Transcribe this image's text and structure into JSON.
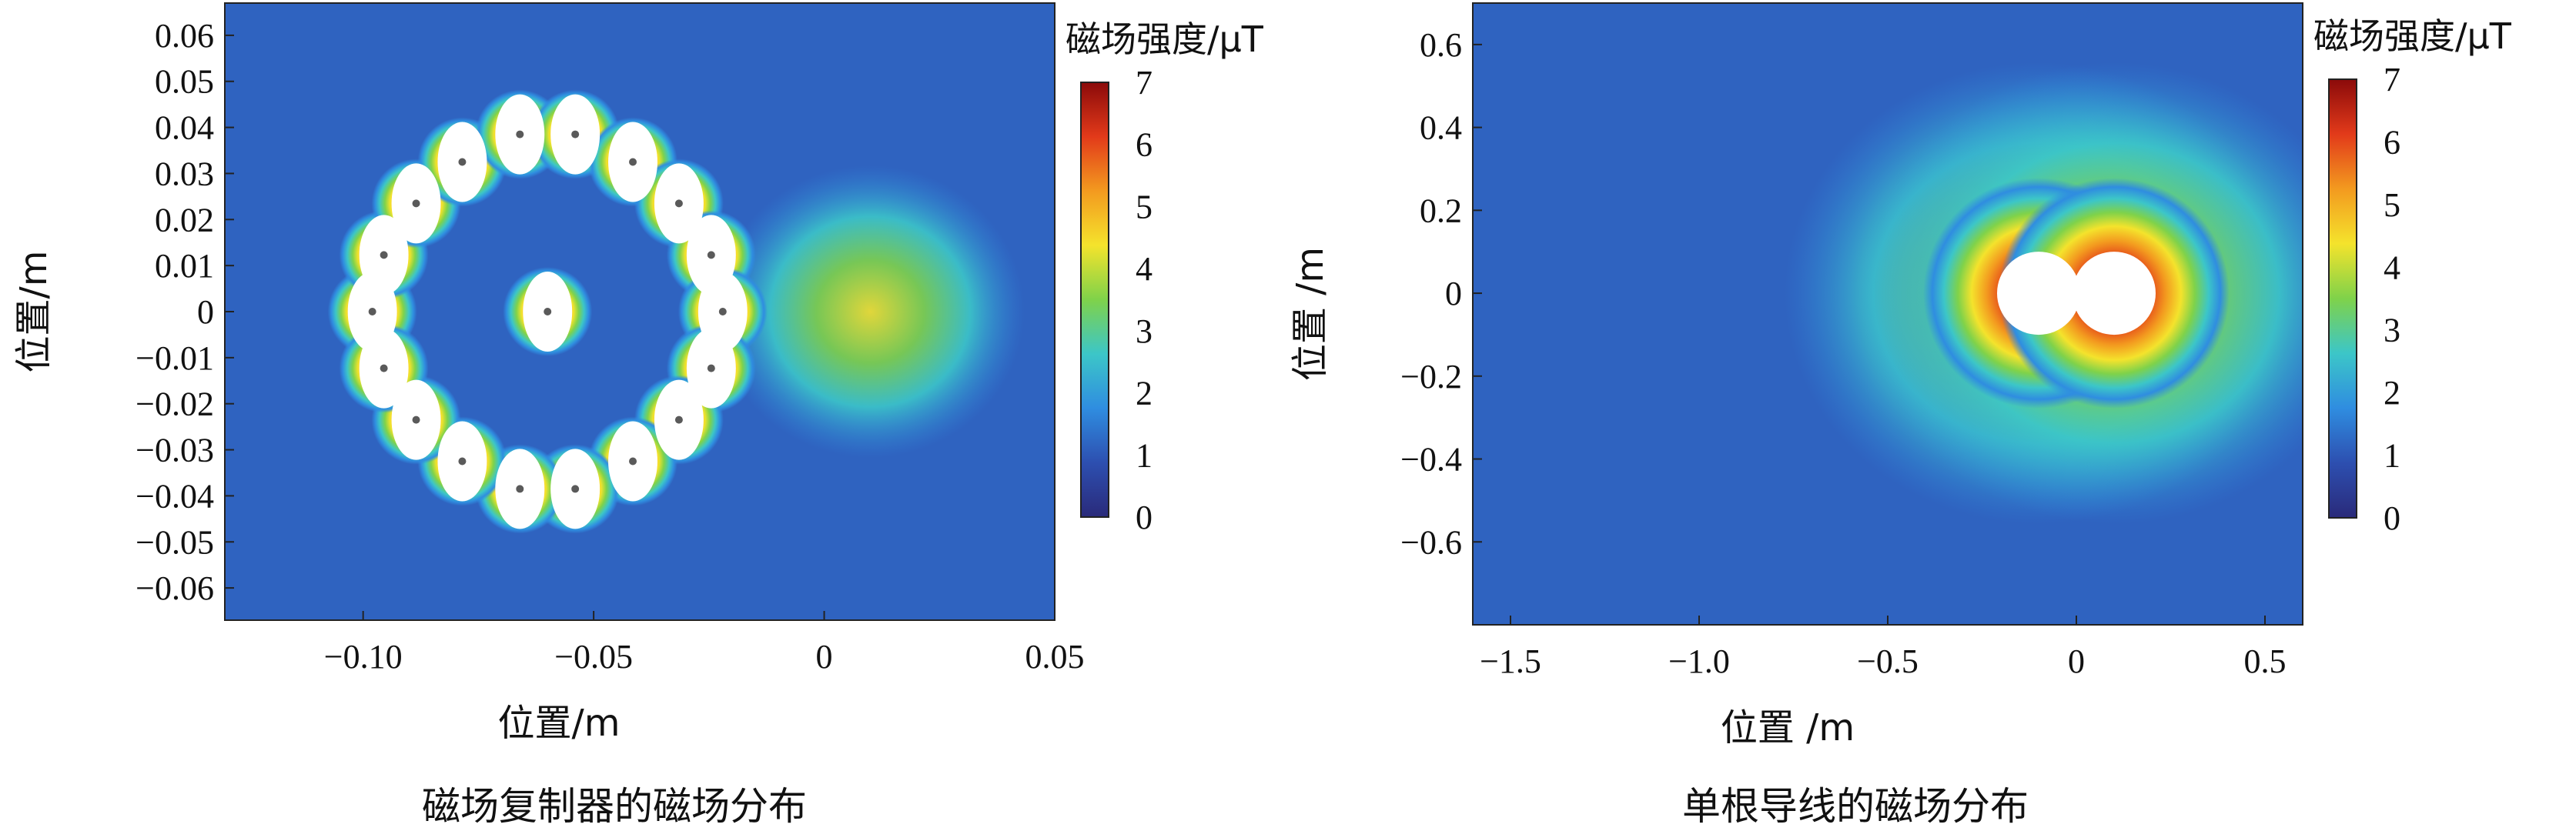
{
  "colors": {
    "colormap": [
      "#2a2a7a",
      "#2d4fb0",
      "#2f8de0",
      "#3cc6c8",
      "#7fd24a",
      "#f4e32c",
      "#f39a1f",
      "#e23a1a",
      "#8b0a0a"
    ],
    "background_field": "#2f63c0",
    "conductor": "#ffffff",
    "conductor_dot": "#5a5a5a"
  },
  "chart_data": [
    {
      "type": "heatmap",
      "caption": "磁场复制器的磁场分布",
      "xlabel": "位置/m",
      "ylabel": "位置/m",
      "xlim": [
        -0.13,
        0.05
      ],
      "ylim": [
        -0.067,
        0.067
      ],
      "xticks": [
        -0.1,
        -0.05,
        0,
        0.05
      ],
      "xtick_labels": [
        "−0.10",
        "−0.05",
        "0",
        "0.05"
      ],
      "yticks": [
        0.06,
        0.05,
        0.04,
        0.03,
        0.02,
        0.01,
        0,
        -0.01,
        -0.02,
        -0.03,
        -0.04,
        -0.05,
        -0.06
      ],
      "ytick_labels": [
        "0.06",
        "0.05",
        "0.04",
        "0.03",
        "0.02",
        "0.01",
        "0",
        "−0.01",
        "−0.02",
        "−0.03",
        "−0.04",
        "−0.05",
        "−0.06"
      ],
      "colorbar": {
        "title": "磁场强度/μT",
        "min": 0,
        "max": 7,
        "ticks": [
          7,
          6,
          5,
          4,
          3,
          2,
          1,
          0
        ],
        "tick_labels": [
          "7",
          "6",
          "5",
          "4",
          "3",
          "2",
          "1",
          "0"
        ]
      },
      "conductors": [
        {
          "x": -0.06,
          "y": 0.0
        },
        {
          "x": -0.098,
          "y": 0.0
        },
        {
          "x": -0.0955,
          "y": 0.0123
        },
        {
          "x": -0.0885,
          "y": 0.0235
        },
        {
          "x": -0.0785,
          "y": 0.0325
        },
        {
          "x": -0.066,
          "y": 0.0385
        },
        {
          "x": -0.054,
          "y": 0.0385
        },
        {
          "x": -0.0415,
          "y": 0.0325
        },
        {
          "x": -0.0315,
          "y": 0.0235
        },
        {
          "x": -0.0245,
          "y": 0.0123
        },
        {
          "x": -0.022,
          "y": 0.0
        },
        {
          "x": -0.0245,
          "y": -0.0123
        },
        {
          "x": -0.0315,
          "y": -0.0235
        },
        {
          "x": -0.0415,
          "y": -0.0325
        },
        {
          "x": -0.054,
          "y": -0.0385
        },
        {
          "x": -0.066,
          "y": -0.0385
        },
        {
          "x": -0.0785,
          "y": -0.0325
        },
        {
          "x": -0.0885,
          "y": -0.0235
        },
        {
          "x": -0.0955,
          "y": -0.0123
        }
      ]
    },
    {
      "type": "heatmap",
      "caption": "单根导线的磁场分布",
      "xlabel": "位置 /m",
      "ylabel": "位置 /m",
      "xlim": [
        -1.6,
        0.6
      ],
      "ylim": [
        -0.8,
        0.7
      ],
      "xticks": [
        -1.5,
        -1.0,
        -0.5,
        0,
        0.5
      ],
      "xtick_labels": [
        "−1.5",
        "−1.0",
        "−0.5",
        "0",
        "0.5"
      ],
      "yticks": [
        0.6,
        0.4,
        0.2,
        0,
        -0.2,
        -0.4,
        -0.6
      ],
      "ytick_labels": [
        "0.6",
        "0.4",
        "0.2",
        "0",
        "−0.2",
        "−0.4",
        "−0.6"
      ],
      "colorbar": {
        "title": "磁场强度/μT",
        "min": 0,
        "max": 7,
        "ticks": [
          7,
          6,
          5,
          4,
          3,
          2,
          1,
          0
        ],
        "tick_labels": [
          "7",
          "6",
          "5",
          "4",
          "3",
          "2",
          "1",
          "0"
        ]
      },
      "conductors": [
        {
          "x": -0.1,
          "y": 0.0
        },
        {
          "x": 0.1,
          "y": 0.0
        }
      ]
    }
  ]
}
